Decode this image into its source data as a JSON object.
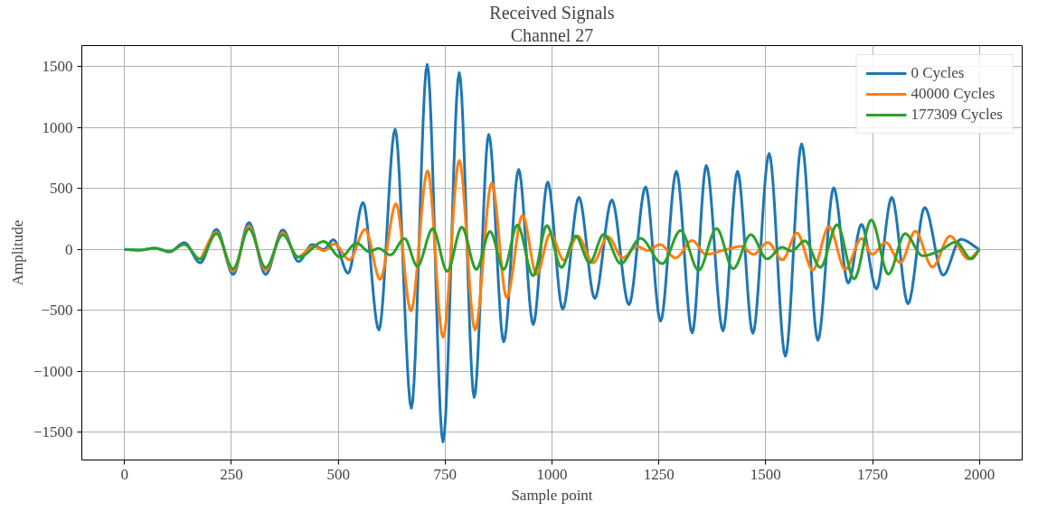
{
  "chart_data": {
    "type": "line",
    "title": "Received Signals",
    "subtitle": "Channel 27",
    "xlabel": "Sample point",
    "ylabel": "Amplitude",
    "xlim": [
      -100,
      2100
    ],
    "ylim": [
      -1727,
      1672
    ],
    "xticks": [
      0,
      250,
      500,
      750,
      1000,
      1250,
      1500,
      1750,
      2000
    ],
    "yticks": [
      {
        "value": -1500,
        "label": "−1500"
      },
      {
        "value": -1000,
        "label": "−1000"
      },
      {
        "value": -500,
        "label": "−500"
      },
      0,
      500,
      1000,
      1500
    ],
    "grid": true,
    "legend": "top right",
    "line_style": "solid",
    "marker": "none",
    "series": [
      {
        "name": "0 Cycles",
        "color": "#1f77b4",
        "x": [
          0,
          35,
          70,
          105,
          140,
          177,
          215,
          254,
          291,
          330,
          370,
          407,
          439,
          466,
          489,
          523,
          558,
          595,
          633,
          671,
          708,
          745,
          783,
          818,
          852,
          887,
          922,
          956,
          990,
          1025,
          1063,
          1100,
          1140,
          1180,
          1219,
          1254,
          1291,
          1328,
          1361,
          1400,
          1434,
          1470,
          1508,
          1546,
          1584,
          1622,
          1659,
          1693,
          1724,
          1759,
          1795,
          1833,
          1872,
          1915,
          1956,
          2000
        ],
        "values": [
          0,
          -5,
          10,
          -20,
          55,
          -110,
          165,
          -205,
          220,
          -205,
          160,
          -100,
          40,
          0,
          80,
          -195,
          385,
          -660,
          985,
          -1302,
          1516,
          -1578,
          1450,
          -1213,
          943,
          -758,
          656,
          -615,
          552,
          -490,
          427,
          -401,
          406,
          -453,
          513,
          -588,
          641,
          -685,
          688,
          -667,
          641,
          -688,
          786,
          -875,
          865,
          -745,
          505,
          -276,
          206,
          -323,
          427,
          -445,
          344,
          -211,
          83,
          0
        ]
      },
      {
        "name": "40000 Cycles",
        "color": "#ff7f0e",
        "x": [
          177,
          215,
          254,
          291,
          330,
          370,
          405,
          442,
          466,
          491,
          526,
          563,
          598,
          635,
          670,
          709,
          745,
          783,
          820,
          859,
          894,
          931,
          964,
          996,
          1028,
          1060,
          1096,
          1131,
          1165,
          1199,
          1224,
          1253,
          1289,
          1328,
          1360,
          1408,
          1443,
          1471,
          1505,
          1539,
          1573,
          1610,
          1648,
          1686,
          1724,
          1749,
          1781,
          1815,
          1850,
          1890,
          1931,
          1974,
          2000
        ],
        "values": [
          -85,
          140,
          -180,
          190,
          -170,
          135,
          -60,
          25,
          -10,
          45,
          -85,
          165,
          -245,
          375,
          -505,
          645,
          -720,
          730,
          -660,
          545,
          -395,
          280,
          -205,
          130,
          -90,
          110,
          -110,
          105,
          -70,
          25,
          -8,
          40,
          -70,
          73,
          -40,
          0,
          25,
          -40,
          57,
          -86,
          135,
          -170,
          188,
          -165,
          90,
          -40,
          57,
          -110,
          150,
          -145,
          110,
          -78,
          0
        ]
      },
      {
        "name": "177309 Cycles",
        "color": "#2ca02c",
        "x": [
          0,
          35,
          70,
          105,
          140,
          177,
          215,
          254,
          291,
          330,
          370,
          407,
          466,
          505,
          543,
          572,
          594,
          622,
          655,
          685,
          721,
          755,
          789,
          823,
          855,
          887,
          919,
          956,
          988,
          1022,
          1055,
          1088,
          1121,
          1161,
          1207,
          1258,
          1301,
          1343,
          1385,
          1424,
          1465,
          1503,
          1538,
          1560,
          1592,
          1628,
          1667,
          1707,
          1747,
          1787,
          1826,
          1867,
          1906,
          1945,
          1981,
          2000
        ],
        "values": [
          0,
          -5,
          10,
          -15,
          40,
          -80,
          130,
          -160,
          170,
          -150,
          120,
          -65,
          65,
          -65,
          52,
          -18,
          8,
          -45,
          90,
          -138,
          170,
          -180,
          183,
          -164,
          148,
          -164,
          200,
          -216,
          196,
          -148,
          112,
          -110,
          125,
          -117,
          91,
          -117,
          156,
          -172,
          172,
          -159,
          122,
          -78,
          18,
          -13,
          70,
          -148,
          203,
          -242,
          242,
          -203,
          130,
          -52,
          -13,
          60,
          -78,
          0
        ]
      }
    ]
  }
}
